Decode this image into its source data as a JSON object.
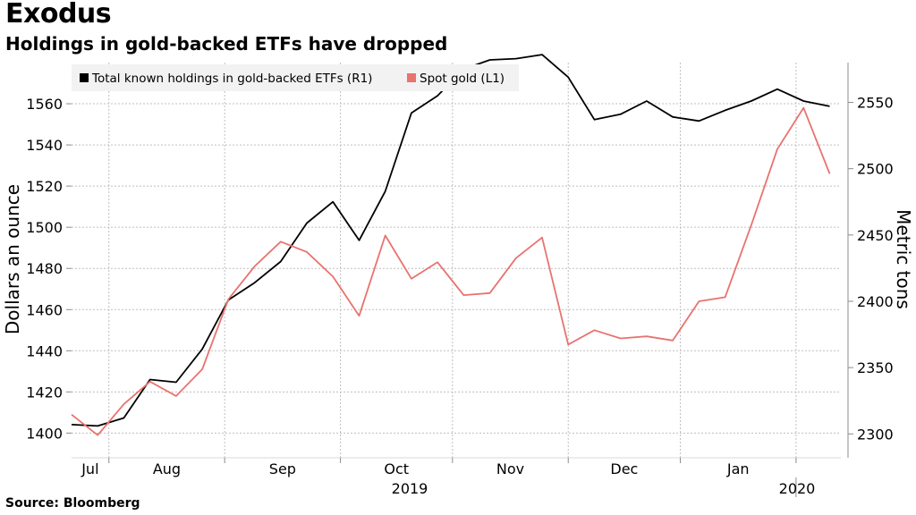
{
  "header": {
    "title": "Exodus",
    "subtitle": "Holdings in gold-backed ETFs have dropped"
  },
  "footer": {
    "source": "Source: Bloomberg"
  },
  "chart_data": {
    "type": "line",
    "grid": true,
    "legend_position": "top-left",
    "x_month_labels": [
      "Jul",
      "Aug",
      "Sep",
      "Oct",
      "Nov",
      "Dec",
      "Jan"
    ],
    "x_year_labels": [
      "2019",
      "2020"
    ],
    "ylabel_left": "Dollars an ounce",
    "ylabel_right": "Metric tons",
    "ylim_left": [
      1388,
      1580
    ],
    "ylim_right": [
      2282,
      2580
    ],
    "yticks_left": [
      1400,
      1420,
      1440,
      1460,
      1480,
      1500,
      1520,
      1540,
      1560
    ],
    "yticks_right": [
      2300,
      2350,
      2400,
      2450,
      2500,
      2550
    ],
    "x_range": [
      "2019-06-21",
      "2020-01-13"
    ],
    "x": [
      "2019-06-21",
      "2019-06-28",
      "2019-07-05",
      "2019-07-12",
      "2019-07-19",
      "2019-07-26",
      "2019-08-02",
      "2019-08-09",
      "2019-08-16",
      "2019-08-23",
      "2019-08-30",
      "2019-09-06",
      "2019-09-13",
      "2019-09-20",
      "2019-09-27",
      "2019-10-04",
      "2019-10-11",
      "2019-10-18",
      "2019-10-25",
      "2019-11-01",
      "2019-11-08",
      "2019-11-15",
      "2019-11-22",
      "2019-11-29",
      "2019-12-06",
      "2019-12-13",
      "2019-12-20",
      "2019-12-27",
      "2020-01-03",
      "2020-01-10"
    ],
    "series": [
      {
        "name": "Total known holdings in gold-backed ETFs (R1)",
        "axis": "right",
        "color": "#000000",
        "values": [
          2307,
          2306,
          2312,
          2341,
          2339,
          2364,
          2401,
          2414,
          2430,
          2459,
          2475,
          2446,
          2483,
          2542,
          2555,
          2575,
          2582,
          2583,
          2586,
          2569,
          2537,
          2541,
          2551,
          2539,
          2536,
          2544,
          2551,
          2560,
          2551,
          2547
        ]
      },
      {
        "name": "Spot gold (L1)",
        "axis": "left",
        "color": "#e8736f",
        "values": [
          1409,
          1399,
          1414,
          1425,
          1418,
          1431,
          1465,
          1481,
          1493,
          1488,
          1476,
          1457,
          1496,
          1475,
          1483,
          1467,
          1468,
          1485,
          1495,
          1443,
          1450,
          1446,
          1447,
          1445,
          1464,
          1466,
          1501,
          1538,
          1558,
          1526
        ]
      }
    ]
  }
}
